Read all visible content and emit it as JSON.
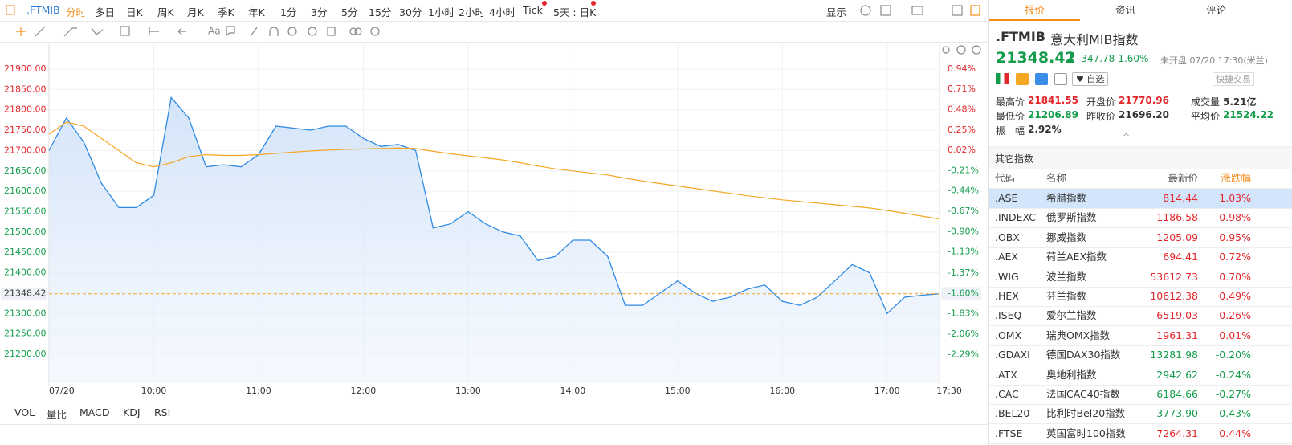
{
  "toolbar": {
    "symbol": ".FTMIB",
    "periods": [
      "分时",
      "多日",
      "日K",
      "周K",
      "月K",
      "季K",
      "年K",
      "1分",
      "3分",
      "5分",
      "15分",
      "30分",
      "1小时",
      "2小时",
      "4小时",
      "Tick",
      "5天 : 日K"
    ],
    "display": "显示"
  },
  "indicators": [
    "VOL",
    "量比",
    "MACD",
    "KDJ",
    "RSI"
  ],
  "chart_data": {
    "type": "line",
    "x": [
      "09:00",
      "09:10",
      "09:20",
      "09:30",
      "09:40",
      "09:50",
      "10:00",
      "10:10",
      "10:20",
      "10:30",
      "10:40",
      "10:50",
      "11:00",
      "11:10",
      "11:20",
      "11:30",
      "11:40",
      "11:50",
      "12:00",
      "12:10",
      "12:20",
      "12:30",
      "12:40",
      "12:50",
      "13:00",
      "13:10",
      "13:20",
      "13:30",
      "13:40",
      "13:50",
      "14:00",
      "14:10",
      "14:20",
      "14:30",
      "14:40",
      "14:50",
      "15:00",
      "15:10",
      "15:20",
      "15:30",
      "15:40",
      "15:50",
      "16:00",
      "16:10",
      "16:20",
      "16:30",
      "16:40",
      "16:50",
      "17:00",
      "17:10",
      "17:20",
      "17:30"
    ],
    "series": [
      {
        "color": "#2f8ae5",
        "values": [
          21700,
          21780,
          21720,
          21620,
          21560,
          21560,
          21590,
          21830,
          21780,
          21660,
          21665,
          21660,
          21690,
          21760,
          21755,
          21750,
          21760,
          21760,
          21730,
          21710,
          21715,
          21700,
          21510,
          21520,
          21550,
          21520,
          21500,
          21490,
          21430,
          21440,
          21480,
          21480,
          21440,
          21320,
          21320,
          21350,
          21380,
          21350,
          21330,
          21340,
          21360,
          21370,
          21330,
          21320,
          21340,
          21380,
          21420,
          21400,
          21300,
          21340,
          21345,
          21348.42
        ]
      },
      {
        "color": "#f5a623",
        "values": [
          21740,
          21770,
          21760,
          21730,
          21700,
          21670,
          21660,
          21670,
          21685,
          21690,
          21688,
          21688,
          21690,
          21693,
          21696,
          21699,
          21701,
          21703,
          21704,
          21705,
          21706,
          21705,
          21698,
          21692,
          21687,
          21682,
          21677,
          21670,
          21662,
          21655,
          21650,
          21645,
          21640,
          21632,
          21625,
          21619,
          21613,
          21607,
          21601,
          21595,
          21589,
          21584,
          21579,
          21575,
          21571,
          21567,
          21563,
          21559,
          21553,
          21546,
          21539,
          21532
        ]
      }
    ],
    "xlim": [
      "09:00",
      "17:30"
    ],
    "xticks": [
      {
        "value": "09:00",
        "label": "07/20"
      },
      "10:00",
      "11:00",
      "12:00",
      "13:00",
      "14:00",
      "15:00",
      "16:00",
      "17:00",
      "17:30"
    ],
    "ylim": [
      21133,
      21961
    ],
    "yticks": [
      {
        "value": 21900,
        "label": "21900.00"
      },
      {
        "value": 21850,
        "label": "21850.00"
      },
      {
        "value": 21800,
        "label": "21800.00"
      },
      {
        "value": 21750,
        "label": "21750.00"
      },
      {
        "value": 21700,
        "label": "21700.00"
      },
      {
        "value": 21650,
        "label": "21650.00"
      },
      {
        "value": 21600,
        "label": "21600.00"
      },
      {
        "value": 21550,
        "label": "21550.00"
      },
      {
        "value": 21500,
        "label": "21500.00"
      },
      {
        "value": 21450,
        "label": "21450.00"
      },
      {
        "value": 21400,
        "label": "21400.00"
      },
      {
        "value": 21350,
        "label": "21350.00"
      },
      {
        "value": 21300,
        "label": "21300.00"
      },
      {
        "value": 21250,
        "label": "21250.00"
      },
      {
        "value": 21200,
        "label": "21200.00"
      }
    ],
    "y2lim": [
      -2.596,
      1.22
    ],
    "y2ticks": [
      {
        "value": 0.94,
        "label": "0.94%"
      },
      {
        "value": 0.71,
        "label": "0.71%"
      },
      {
        "value": 0.48,
        "label": "0.48%"
      },
      {
        "value": 0.25,
        "label": "0.25%"
      },
      {
        "value": 0.02,
        "label": "0.02%"
      },
      {
        "value": -0.21,
        "label": "-0.21%"
      },
      {
        "value": -0.44,
        "label": "-0.44%"
      },
      {
        "value": -0.67,
        "label": "-0.67%"
      },
      {
        "value": -0.9,
        "label": "-0.90%"
      },
      {
        "value": -1.13,
        "label": "-1.13%"
      },
      {
        "value": -1.37,
        "label": "-1.37%"
      },
      {
        "value": -1.6,
        "label": "-1.60%"
      },
      {
        "value": -1.83,
        "label": "-1.83%"
      },
      {
        "value": -2.06,
        "label": "-2.06%"
      },
      {
        "value": -2.29,
        "label": "-2.29%"
      }
    ],
    "current": 21348.42,
    "current_change": {
      "value": -1.6,
      "label": "-1.60%"
    },
    "grid": true
  },
  "panel": {
    "tabs": [
      "报价",
      "资讯",
      "评论"
    ],
    "symbol": ".FTMIB",
    "name": "意大利MIB指数",
    "price": "21348.42",
    "change": "-347.78",
    "change_pct": "-1.60%",
    "status": "未开盘 07/20 17:30(米兰)",
    "watch": "自选",
    "quick_trade": "快捷交易",
    "stats": [
      {
        "label": "最高价",
        "value": "21841.55"
      },
      {
        "label": "开盘价",
        "value": "21770.96"
      },
      {
        "label": "成交量",
        "value": "5.21亿"
      },
      {
        "label": "最低价",
        "value": "21206.89"
      },
      {
        "label": "昨收价",
        "value": "21696.20"
      },
      {
        "label": "平均价",
        "value": "21524.22"
      },
      {
        "label": "振　幅",
        "value": "2.92%"
      }
    ],
    "other_title": "其它指数",
    "table": {
      "header": [
        "代码",
        "名称",
        "最新价",
        "涨跌幅"
      ],
      "rows": [
        [
          ".ASE",
          "希腊指数",
          "814.44",
          "1.03%"
        ],
        [
          ".INDEXC",
          "俄罗斯指数",
          "1186.58",
          "0.98%"
        ],
        [
          ".OBX",
          "挪威指数",
          "1205.09",
          "0.95%"
        ],
        [
          ".AEX",
          "荷兰AEX指数",
          "694.41",
          "0.72%"
        ],
        [
          ".WIG",
          "波兰指数",
          "53612.73",
          "0.70%"
        ],
        [
          ".HEX",
          "芬兰指数",
          "10612.38",
          "0.49%"
        ],
        [
          ".ISEQ",
          "爱尔兰指数",
          "6519.03",
          "0.26%"
        ],
        [
          ".OMX",
          "瑞典OMX指数",
          "1961.31",
          "0.01%"
        ],
        [
          ".GDAXI",
          "德国DAX30指数",
          "13281.98",
          "-0.20%"
        ],
        [
          ".ATX",
          "奥地利指数",
          "2942.62",
          "-0.24%"
        ],
        [
          ".CAC",
          "法国CAC40指数",
          "6184.66",
          "-0.27%"
        ],
        [
          ".BEL20",
          "比利时Bel20指数",
          "3773.90",
          "-0.43%"
        ],
        [
          ".FTSE",
          "英国富时100指数",
          "7264.31",
          "0.44%"
        ]
      ]
    }
  }
}
